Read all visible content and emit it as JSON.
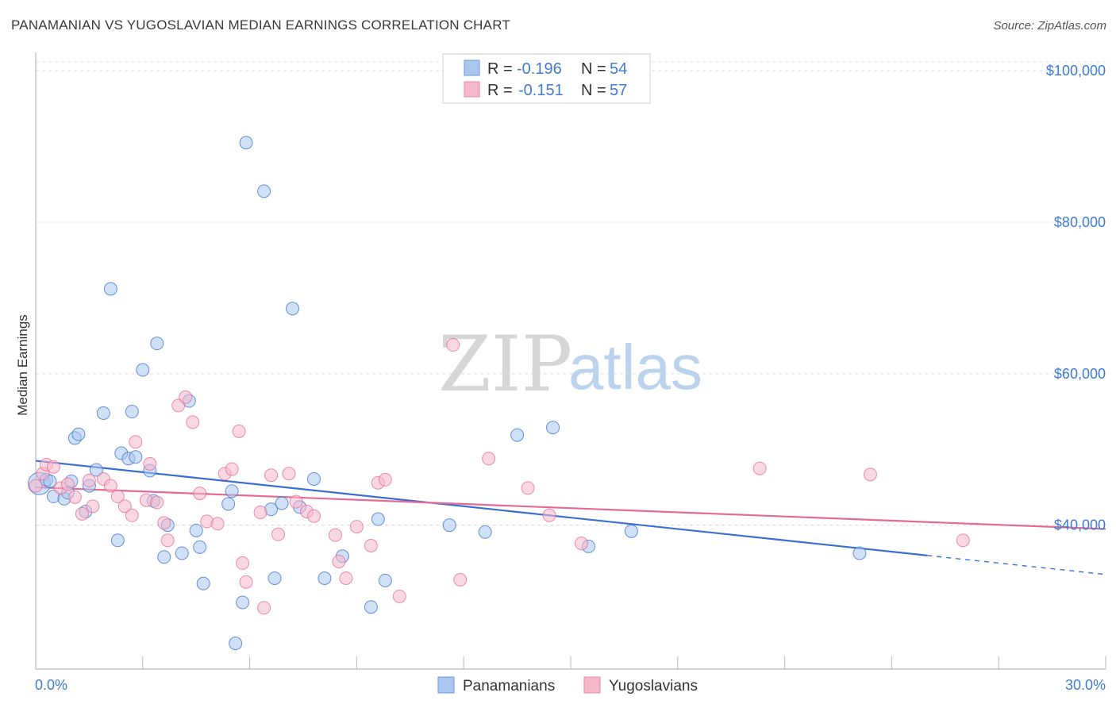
{
  "title": "PANAMANIAN VS YUGOSLAVIAN MEDIAN EARNINGS CORRELATION CHART",
  "source": "Source: ZipAtlas.com",
  "watermark": {
    "zip": "ZIP",
    "atlas": "atlas"
  },
  "colors": {
    "blue": "#3a6fcf",
    "blue_fill": "#a9c7ef",
    "pink": "#e26a95",
    "pink_fill": "#f5b8cb",
    "tick_text": "#3f7bd1"
  },
  "legend": {
    "r_label": "R =",
    "n_label": "N =",
    "rows": [
      {
        "r": "-0.196",
        "n": "54"
      },
      {
        "r": "-0.151",
        "n": "57"
      }
    ]
  },
  "chart_data": {
    "type": "scatter",
    "title": "PANAMANIAN VS YUGOSLAVIAN MEDIAN EARNINGS CORRELATION CHART",
    "xlabel": "",
    "ylabel": "Median Earnings",
    "xlim": [
      0,
      30
    ],
    "ylim": [
      21000,
      102000
    ],
    "x_tick_labels": [
      "0.0%",
      "30.0%"
    ],
    "y_ticks": [
      40000,
      60000,
      80000,
      100000
    ],
    "y_tick_labels": [
      "$40,000",
      "$60,000",
      "$80,000",
      "$100,000"
    ],
    "grid": true,
    "legend_position": "top-center",
    "series": [
      {
        "name": "Panamanians",
        "color": "#3a6fcf",
        "r": -0.196,
        "n": 54,
        "trend": {
          "x0": 0.0,
          "y0": 48500,
          "x1": 25.0,
          "y1": 36000,
          "dash_to_x": 30.0,
          "dash_to_y": 33500
        },
        "points": [
          [
            0.1,
            45500
          ],
          [
            0.3,
            46000
          ],
          [
            0.4,
            45800
          ],
          [
            0.5,
            43800
          ],
          [
            0.8,
            43500
          ],
          [
            0.9,
            44300
          ],
          [
            1.0,
            45800
          ],
          [
            1.1,
            51500
          ],
          [
            1.2,
            52000
          ],
          [
            1.4,
            41800
          ],
          [
            1.5,
            45200
          ],
          [
            1.7,
            47300
          ],
          [
            1.9,
            54800
          ],
          [
            2.1,
            71200
          ],
          [
            2.3,
            38000
          ],
          [
            2.4,
            49500
          ],
          [
            2.6,
            48800
          ],
          [
            2.7,
            55000
          ],
          [
            2.8,
            49000
          ],
          [
            3.0,
            60500
          ],
          [
            3.2,
            47200
          ],
          [
            3.3,
            43200
          ],
          [
            3.4,
            64000
          ],
          [
            3.6,
            35800
          ],
          [
            3.7,
            40000
          ],
          [
            4.1,
            36300
          ],
          [
            4.3,
            56400
          ],
          [
            4.5,
            39300
          ],
          [
            4.6,
            37100
          ],
          [
            4.7,
            32300
          ],
          [
            5.4,
            42800
          ],
          [
            5.5,
            44500
          ],
          [
            5.6,
            24400
          ],
          [
            5.8,
            29800
          ],
          [
            5.9,
            90500
          ],
          [
            6.4,
            84100
          ],
          [
            6.6,
            42100
          ],
          [
            6.7,
            33000
          ],
          [
            6.9,
            42900
          ],
          [
            7.2,
            68600
          ],
          [
            7.4,
            42400
          ],
          [
            7.8,
            46100
          ],
          [
            8.1,
            33000
          ],
          [
            8.6,
            35900
          ],
          [
            9.4,
            29200
          ],
          [
            9.6,
            40800
          ],
          [
            9.8,
            32700
          ],
          [
            11.6,
            40000
          ],
          [
            12.6,
            39100
          ],
          [
            13.5,
            51900
          ],
          [
            14.5,
            52900
          ],
          [
            15.5,
            37200
          ],
          [
            16.7,
            39200
          ],
          [
            23.1,
            36300
          ]
        ]
      },
      {
        "name": "Yugoslavians",
        "color": "#e26a95",
        "r": -0.151,
        "n": 57,
        "trend": {
          "x0": 0.0,
          "y0": 45000,
          "x1": 30.0,
          "y1": 39500
        },
        "points": [
          [
            0.2,
            46800
          ],
          [
            0.3,
            48000
          ],
          [
            0.5,
            47700
          ],
          [
            0.7,
            44900
          ],
          [
            0.9,
            45400
          ],
          [
            1.1,
            43700
          ],
          [
            1.3,
            41500
          ],
          [
            1.5,
            45900
          ],
          [
            1.6,
            42500
          ],
          [
            1.9,
            46100
          ],
          [
            2.1,
            45200
          ],
          [
            2.3,
            43800
          ],
          [
            2.5,
            42500
          ],
          [
            2.7,
            41300
          ],
          [
            2.8,
            51000
          ],
          [
            3.1,
            43300
          ],
          [
            3.2,
            48100
          ],
          [
            3.4,
            43000
          ],
          [
            3.6,
            40300
          ],
          [
            3.7,
            38000
          ],
          [
            4.0,
            55800
          ],
          [
            4.2,
            56900
          ],
          [
            4.4,
            53600
          ],
          [
            4.6,
            44200
          ],
          [
            4.8,
            40500
          ],
          [
            5.1,
            40200
          ],
          [
            5.3,
            46800
          ],
          [
            5.5,
            47400
          ],
          [
            5.7,
            52400
          ],
          [
            5.8,
            35000
          ],
          [
            5.9,
            32500
          ],
          [
            6.3,
            41700
          ],
          [
            6.4,
            29100
          ],
          [
            6.6,
            46600
          ],
          [
            6.8,
            38800
          ],
          [
            7.1,
            46800
          ],
          [
            7.3,
            43100
          ],
          [
            7.6,
            41800
          ],
          [
            7.8,
            41200
          ],
          [
            8.4,
            38700
          ],
          [
            8.5,
            35200
          ],
          [
            8.7,
            33000
          ],
          [
            9.0,
            39800
          ],
          [
            9.4,
            37300
          ],
          [
            9.6,
            45600
          ],
          [
            9.8,
            46000
          ],
          [
            10.2,
            30600
          ],
          [
            11.7,
            63800
          ],
          [
            11.9,
            32800
          ],
          [
            12.7,
            48800
          ],
          [
            13.8,
            44900
          ],
          [
            14.4,
            41300
          ],
          [
            15.3,
            37600
          ],
          [
            20.3,
            47500
          ],
          [
            23.4,
            46700
          ],
          [
            26.0,
            38000
          ],
          [
            0.0,
            45200
          ]
        ]
      }
    ]
  }
}
